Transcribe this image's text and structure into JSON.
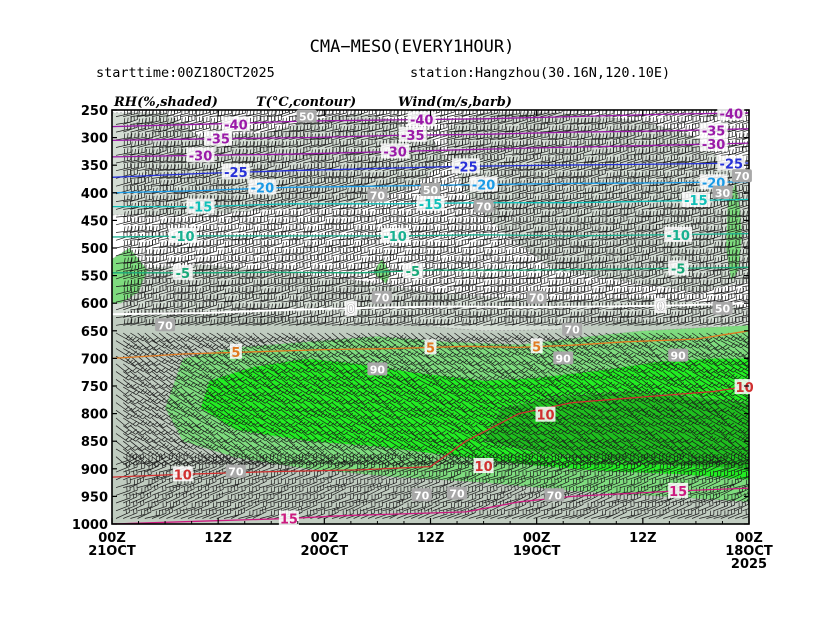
{
  "chart_data": {
    "type": "heatmap",
    "title": "CMA−MESO(EVERY1HOUR)",
    "subtitle_left": "starttime:00Z18OCT2025",
    "subtitle_right": "station:Hangzhou(30.16N,120.10E)",
    "variable_labels": [
      "RH(%,shaded)",
      "T(°C,contour)",
      "Wind(m/s,barb)"
    ],
    "x_tick_labels": [
      [
        "00Z",
        "21OCT"
      ],
      [
        "12Z"
      ],
      [
        "00Z",
        "20OCT"
      ],
      [
        "12Z"
      ],
      [
        "00Z",
        "19OCT"
      ],
      [
        "12Z"
      ],
      [
        "00Z",
        "18OCT",
        "2025"
      ]
    ],
    "x_hours": [
      72,
      60,
      48,
      36,
      24,
      12,
      0
    ],
    "x_reversed": true,
    "y_levels": [
      250,
      300,
      350,
      400,
      450,
      500,
      550,
      600,
      650,
      700,
      750,
      800,
      850,
      900,
      950,
      1000
    ],
    "y_unit": "hPa",
    "y_reversed": true,
    "rh_colors": {
      "50": "#e6ece6",
      "60": "#d4ddd4",
      "70": "#c0ccc0",
      "80": "#7edc7e",
      "90": "#22ee22",
      "95": "#1ec01e"
    },
    "rh_regions": [
      {
        "level": 60,
        "points": [
          [
            72,
            255
          ],
          [
            66,
            255
          ],
          [
            62,
            300
          ],
          [
            54,
            290
          ],
          [
            50,
            270
          ],
          [
            44,
            255
          ],
          [
            40,
            270
          ],
          [
            36,
            300
          ],
          [
            34,
            340
          ],
          [
            38,
            390
          ],
          [
            44,
            420
          ],
          [
            54,
            430
          ],
          [
            62,
            440
          ],
          [
            72,
            440
          ]
        ]
      },
      {
        "level": 60,
        "points": [
          [
            30,
            255
          ],
          [
            22,
            255
          ],
          [
            12,
            270
          ],
          [
            6,
            300
          ],
          [
            3,
            340
          ],
          [
            0,
            380
          ],
          [
            0,
            560
          ],
          [
            6,
            580
          ],
          [
            14,
            560
          ],
          [
            22,
            540
          ],
          [
            28,
            470
          ],
          [
            32,
            400
          ],
          [
            34,
            330
          ],
          [
            34,
            280
          ]
        ]
      },
      {
        "level": 60,
        "points": [
          [
            72,
            540
          ],
          [
            62,
            530
          ],
          [
            52,
            545
          ],
          [
            44,
            560
          ],
          [
            36,
            580
          ],
          [
            28,
            590
          ],
          [
            20,
            595
          ],
          [
            12,
            590
          ],
          [
            4,
            600
          ],
          [
            0,
            610
          ],
          [
            0,
            1000
          ],
          [
            72,
            1000
          ]
        ]
      },
      {
        "level": 70,
        "points": [
          [
            72,
            620
          ],
          [
            62,
            615
          ],
          [
            54,
            625
          ],
          [
            46,
            640
          ],
          [
            38,
            640
          ],
          [
            30,
            650
          ],
          [
            22,
            648
          ],
          [
            14,
            630
          ],
          [
            6,
            640
          ],
          [
            0,
            650
          ],
          [
            0,
            1000
          ],
          [
            72,
            1000
          ]
        ]
      },
      {
        "level": 80,
        "points": [
          [
            64,
            700
          ],
          [
            58,
            680
          ],
          [
            50,
            670
          ],
          [
            42,
            660
          ],
          [
            34,
            670
          ],
          [
            26,
            675
          ],
          [
            18,
            660
          ],
          [
            12,
            650
          ],
          [
            6,
            645
          ],
          [
            0,
            640
          ],
          [
            0,
            960
          ],
          [
            10,
            950
          ],
          [
            20,
            940
          ],
          [
            30,
            925
          ],
          [
            40,
            915
          ],
          [
            50,
            900
          ],
          [
            58,
            880
          ],
          [
            64,
            850
          ],
          [
            66,
            790
          ]
        ]
      },
      {
        "level": 90,
        "points": [
          [
            61,
            740
          ],
          [
            56,
            715
          ],
          [
            50,
            700
          ],
          [
            44,
            710
          ],
          [
            38,
            725
          ],
          [
            30,
            740
          ],
          [
            24,
            735
          ],
          [
            16,
            720
          ],
          [
            10,
            705
          ],
          [
            4,
            700
          ],
          [
            0,
            700
          ],
          [
            0,
            920
          ],
          [
            8,
            910
          ],
          [
            16,
            905
          ],
          [
            24,
            895
          ],
          [
            32,
            880
          ],
          [
            42,
            860
          ],
          [
            50,
            850
          ],
          [
            58,
            830
          ],
          [
            62,
            790
          ]
        ]
      },
      {
        "level": 95,
        "points": [
          [
            28,
            790
          ],
          [
            22,
            770
          ],
          [
            14,
            760
          ],
          [
            6,
            770
          ],
          [
            0,
            780
          ],
          [
            0,
            900
          ],
          [
            8,
            895
          ],
          [
            16,
            885
          ],
          [
            24,
            870
          ],
          [
            30,
            850
          ]
        ]
      },
      {
        "level": 80,
        "points": [
          [
            72,
            520
          ],
          [
            70,
            500
          ],
          [
            68,
            540
          ],
          [
            69,
            580
          ],
          [
            71,
            600
          ],
          [
            72,
            600
          ]
        ]
      },
      {
        "level": 80,
        "points": [
          [
            1.5,
            380
          ],
          [
            1,
            430
          ],
          [
            0.8,
            480
          ],
          [
            1.2,
            540
          ],
          [
            2,
            560
          ],
          [
            2.6,
            500
          ],
          [
            2.4,
            420
          ]
        ]
      },
      {
        "level": 80,
        "points": [
          [
            41.5,
            520
          ],
          [
            40.5,
            545
          ],
          [
            41,
            565
          ],
          [
            42.5,
            545
          ]
        ]
      }
    ],
    "temperature_contours": [
      {
        "value": -40,
        "color": "#9a1aa8",
        "points": [
          [
            72,
            280
          ],
          [
            60,
            275
          ],
          [
            50,
            270
          ],
          [
            40,
            268
          ],
          [
            30,
            266
          ],
          [
            20,
            262
          ],
          [
            10,
            258
          ],
          [
            0,
            255
          ]
        ],
        "labels": [
          [
            58,
            276
          ],
          [
            37,
            267
          ],
          [
            2,
            256
          ]
        ]
      },
      {
        "value": -35,
        "color": "#9a1aa8",
        "points": [
          [
            72,
            305
          ],
          [
            60,
            302
          ],
          [
            50,
            300
          ],
          [
            40,
            296
          ],
          [
            30,
            294
          ],
          [
            20,
            290
          ],
          [
            10,
            288
          ],
          [
            0,
            284
          ]
        ],
        "labels": [
          [
            60,
            302
          ],
          [
            38,
            295
          ],
          [
            4,
            287
          ]
        ]
      },
      {
        "value": -30,
        "color": "#9a1aa8",
        "points": [
          [
            72,
            335
          ],
          [
            62,
            332
          ],
          [
            52,
            330
          ],
          [
            42,
            326
          ],
          [
            32,
            322
          ],
          [
            22,
            318
          ],
          [
            10,
            314
          ],
          [
            0,
            310
          ]
        ],
        "labels": [
          [
            62,
            332
          ],
          [
            40,
            325
          ],
          [
            4,
            312
          ]
        ]
      },
      {
        "value": -25,
        "color": "#2630d8",
        "points": [
          [
            72,
            372
          ],
          [
            62,
            365
          ],
          [
            52,
            360
          ],
          [
            42,
            356
          ],
          [
            32,
            352
          ],
          [
            22,
            350
          ],
          [
            10,
            348
          ],
          [
            0,
            346
          ]
        ],
        "labels": [
          [
            58,
            362
          ],
          [
            32,
            352
          ],
          [
            2,
            347
          ]
        ]
      },
      {
        "value": -20,
        "color": "#1a9ae6",
        "points": [
          [
            72,
            400
          ],
          [
            62,
            396
          ],
          [
            52,
            390
          ],
          [
            42,
            388
          ],
          [
            30,
            385
          ],
          [
            20,
            383
          ],
          [
            10,
            382
          ],
          [
            0,
            380
          ]
        ],
        "labels": [
          [
            55,
            390
          ],
          [
            30,
            385
          ],
          [
            4,
            381
          ]
        ]
      },
      {
        "value": -15,
        "color": "#10c0b8",
        "points": [
          [
            72,
            425
          ],
          [
            62,
            425
          ],
          [
            52,
            420
          ],
          [
            40,
            420
          ],
          [
            30,
            418
          ],
          [
            20,
            418
          ],
          [
            10,
            415
          ],
          [
            0,
            412
          ]
        ],
        "labels": [
          [
            62,
            425
          ],
          [
            36,
            420
          ],
          [
            6,
            413
          ]
        ]
      },
      {
        "value": -10,
        "color": "#18b090",
        "points": [
          [
            72,
            480
          ],
          [
            62,
            478
          ],
          [
            52,
            478
          ],
          [
            40,
            478
          ],
          [
            30,
            476
          ],
          [
            20,
            478
          ],
          [
            10,
            476
          ],
          [
            0,
            474
          ]
        ],
        "labels": [
          [
            64,
            478
          ],
          [
            40,
            478
          ],
          [
            8,
            476
          ]
        ]
      },
      {
        "value": -5,
        "color": "#18a878",
        "points": [
          [
            72,
            545
          ],
          [
            62,
            545
          ],
          [
            54,
            544
          ],
          [
            44,
            545
          ],
          [
            36,
            540
          ],
          [
            26,
            540
          ],
          [
            14,
            538
          ],
          [
            4,
            536
          ],
          [
            0,
            535
          ]
        ],
        "labels": [
          [
            64,
            545
          ],
          [
            38,
            542
          ],
          [
            8,
            537
          ]
        ]
      },
      {
        "value": 0,
        "color": "#ffffff",
        "points": [
          [
            72,
            620
          ],
          [
            62,
            618
          ],
          [
            52,
            612
          ],
          [
            42,
            608
          ],
          [
            34,
            606
          ],
          [
            26,
            607
          ],
          [
            16,
            606
          ],
          [
            8,
            604
          ],
          [
            0,
            600
          ]
        ],
        "labels": [
          [
            45,
            610
          ],
          [
            10,
            605
          ]
        ]
      },
      {
        "value": 5,
        "color": "#e07a20",
        "points": [
          [
            72,
            700
          ],
          [
            64,
            692
          ],
          [
            56,
            688
          ],
          [
            48,
            684
          ],
          [
            40,
            682
          ],
          [
            32,
            678
          ],
          [
            26,
            680
          ],
          [
            20,
            676
          ],
          [
            14,
            670
          ],
          [
            6,
            665
          ],
          [
            0,
            650
          ]
        ],
        "labels": [
          [
            58,
            688
          ],
          [
            36,
            680
          ],
          [
            24,
            678
          ]
        ]
      },
      {
        "value": 10,
        "color": "#d03030",
        "points": [
          [
            72,
            915
          ],
          [
            64,
            910
          ],
          [
            54,
            905
          ],
          [
            44,
            902
          ],
          [
            36,
            896
          ],
          [
            32,
            850
          ],
          [
            26,
            800
          ],
          [
            20,
            780
          ],
          [
            12,
            770
          ],
          [
            4,
            760
          ],
          [
            0,
            750
          ]
        ],
        "labels": [
          [
            64,
            910
          ],
          [
            30,
            895
          ],
          [
            23,
            802
          ],
          [
            0.5,
            752
          ]
        ]
      },
      {
        "value": 15,
        "color": "#cc1a80",
        "points": [
          [
            72,
            1000
          ],
          [
            62,
            995
          ],
          [
            52,
            990
          ],
          [
            46,
            985
          ],
          [
            40,
            982
          ],
          [
            32,
            978
          ],
          [
            26,
            960
          ],
          [
            20,
            950
          ],
          [
            14,
            945
          ],
          [
            8,
            940
          ],
          [
            0,
            935
          ]
        ],
        "labels": [
          [
            52,
            990
          ],
          [
            8,
            940
          ]
        ]
      }
    ],
    "rh_contour_labels": [
      {
        "value": 50,
        "at": [
          50,
          262
        ]
      },
      {
        "value": 50,
        "at": [
          36,
          395
        ]
      },
      {
        "value": 70,
        "at": [
          0.8,
          370
        ]
      },
      {
        "value": 30,
        "at": [
          3,
          400
        ]
      },
      {
        "value": 70,
        "at": [
          42,
          405
        ]
      },
      {
        "value": 70,
        "at": [
          30,
          425
        ]
      },
      {
        "value": 70,
        "at": [
          41.5,
          590
        ]
      },
      {
        "value": 70,
        "at": [
          24,
          590
        ]
      },
      {
        "value": 50,
        "at": [
          3,
          610
        ]
      },
      {
        "value": 70,
        "at": [
          66,
          640
        ]
      },
      {
        "value": 70,
        "at": [
          20,
          648
        ]
      },
      {
        "value": 90,
        "at": [
          21,
          700
        ]
      },
      {
        "value": 90,
        "at": [
          8,
          695
        ]
      },
      {
        "value": 90,
        "at": [
          42,
          720
        ]
      },
      {
        "value": 70,
        "at": [
          58,
          905
        ]
      },
      {
        "value": 70,
        "at": [
          33,
          945
        ]
      },
      {
        "value": 70,
        "at": [
          22,
          948
        ]
      },
      {
        "value": 70,
        "at": [
          37,
          948
        ]
      }
    ],
    "wind_barbs_note": "Dense wind barbs at every level (westerly flow; strong aloft, stronger low-level easterlies in the lower layers)."
  }
}
